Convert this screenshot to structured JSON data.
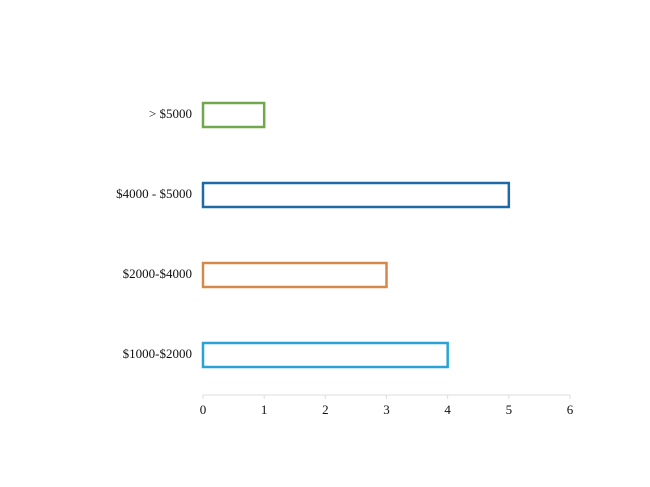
{
  "chart_data": {
    "type": "barh",
    "categories": [
      "$1000-$2000",
      "$2000-$4000",
      "$4000 - $5000",
      "> $5000"
    ],
    "values": [
      4,
      3,
      5,
      1
    ],
    "colors": [
      "#29a3d6",
      "#d4894a",
      "#1f6aa5",
      "#70a84e"
    ],
    "xlim": [
      0,
      6
    ],
    "xticks": [
      0,
      1,
      2,
      3,
      4,
      5,
      6
    ]
  }
}
